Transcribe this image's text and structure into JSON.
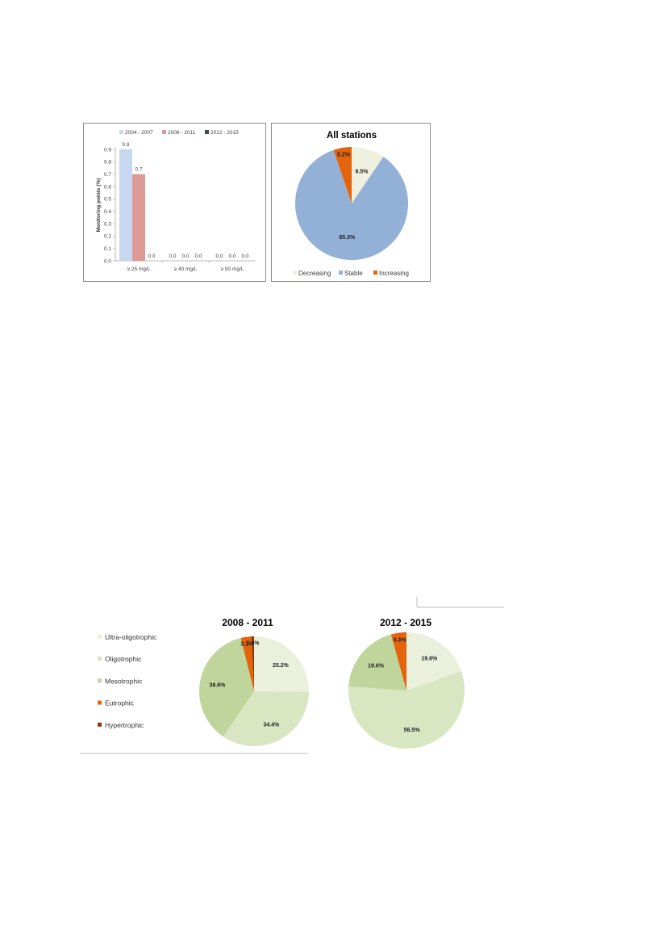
{
  "chart_data": [
    {
      "type": "bar",
      "title": "",
      "xlabel": "",
      "ylabel": "Monitoring points (%)",
      "ylim": [
        0,
        0.9
      ],
      "yticks": [
        "0.0",
        "0.1",
        "0.2",
        "0.3",
        "0.4",
        "0.5",
        "0.6",
        "0.7",
        "0.8",
        "0.9"
      ],
      "categories": [
        "≥ 25 mg/L",
        "≥ 40 mg/L",
        "≥ 50 mg/L"
      ],
      "legend_position": "top",
      "grid": false,
      "series": [
        {
          "name": "2004 - 2007",
          "color": "#c6d7ef",
          "values": [
            0.9,
            0.0,
            0.0
          ],
          "labels": [
            "0.9",
            "0.0",
            "0.0"
          ]
        },
        {
          "name": "2008 - 2011",
          "color": "#dc9a96",
          "values": [
            0.7,
            0.0,
            0.0
          ],
          "labels": [
            "0.7",
            "0.0",
            "0.0"
          ]
        },
        {
          "name": "2012 - 2015",
          "color": "#404a5c",
          "values": [
            0.0,
            0.0,
            0.0
          ],
          "labels": [
            "0.0",
            "0.0",
            "0.0"
          ]
        }
      ]
    },
    {
      "type": "pie",
      "title": "All stations",
      "legend_position": "bottom",
      "slices": [
        {
          "name": "Decreasing",
          "value": 9.5,
          "label": "9.5%",
          "color": "#eef0e0"
        },
        {
          "name": "Stable",
          "value": 85.3,
          "label": "85.3%",
          "color": "#93b1d6"
        },
        {
          "name": "Increasing",
          "value": 5.2,
          "label": "5.2%",
          "color": "#e3640c"
        }
      ]
    },
    {
      "type": "pie",
      "title": "2008 - 2011",
      "legend_position": "left",
      "slices": [
        {
          "name": "Ultra-oligotrophic",
          "value": 25.2,
          "label": "25.2%",
          "color": "#ebf0dc"
        },
        {
          "name": "Oligotrophic",
          "value": 34.4,
          "label": "34.4%",
          "color": "#d8e6c2"
        },
        {
          "name": "Mesotrophic",
          "value": 36.6,
          "label": "36.6%",
          "color": "#c0d59c"
        },
        {
          "name": "Eutrophic",
          "value": 3.1,
          "label": "3.1%",
          "color": "#e3640c"
        },
        {
          "name": "Hypertrophic",
          "value": 0.8,
          "label": "0.8%",
          "color": "#8a3a06"
        }
      ]
    },
    {
      "type": "pie",
      "title": "2012 - 2015",
      "slices": [
        {
          "name": "Ultra-oligotrophic",
          "value": 19.6,
          "label": "19.6%",
          "color": "#ebf0dc"
        },
        {
          "name": "Oligotrophic",
          "value": 56.5,
          "label": "56.5%",
          "color": "#d8e6c2"
        },
        {
          "name": "Mesotrophic",
          "value": 19.6,
          "label": "19.6%",
          "color": "#c0d59c"
        },
        {
          "name": "Eutrophic",
          "value": 4.3,
          "label": "4.3%",
          "color": "#e3640c"
        }
      ]
    }
  ]
}
